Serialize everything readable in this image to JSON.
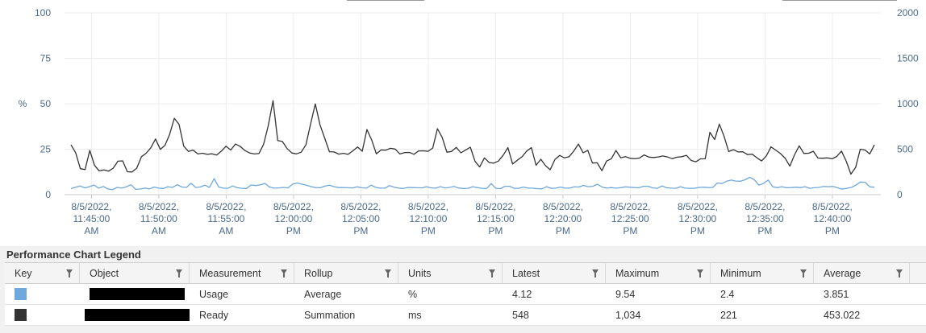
{
  "chart_data": {
    "type": "line",
    "title": "",
    "ylabel": "%",
    "y_left": {
      "ticks": [
        0,
        25,
        50,
        75,
        100
      ],
      "range": [
        0,
        100
      ]
    },
    "y_right": {
      "ticks": [
        0,
        500,
        1000,
        1500,
        2000
      ],
      "range": [
        0,
        2000
      ]
    },
    "x_tick_labels": [
      [
        "8/5/2022,",
        "11:45:00",
        "AM"
      ],
      [
        "8/5/2022,",
        "11:50:00",
        "AM"
      ],
      [
        "8/5/2022,",
        "11:55:00",
        "AM"
      ],
      [
        "8/5/2022,",
        "12:00:00",
        "PM"
      ],
      [
        "8/5/2022,",
        "12:05:00",
        "PM"
      ],
      [
        "8/5/2022,",
        "12:10:00",
        "PM"
      ],
      [
        "8/5/2022,",
        "12:15:00",
        "PM"
      ],
      [
        "8/5/2022,",
        "12:20:00",
        "PM"
      ],
      [
        "8/5/2022,",
        "12:25:00",
        "PM"
      ],
      [
        "8/5/2022,",
        "12:30:00",
        "PM"
      ],
      [
        "8/5/2022,",
        "12:35:00",
        "PM"
      ],
      [
        "8/5/2022,",
        "12:40:00",
        "PM"
      ]
    ],
    "x_start_minute": 43,
    "x_end_minute": 103.6,
    "grid": true,
    "series": [
      {
        "name": "Ready",
        "color": "#333333",
        "axis": "right",
        "values": [
          548,
          461,
          286,
          276,
          487,
          324,
          262,
          272,
          258,
          292,
          368,
          372,
          252,
          250,
          291,
          418,
          456,
          516,
          612,
          498,
          542,
          663,
          841,
          773,
          534,
          476,
          490,
          448,
          456,
          443,
          450,
          436,
          479,
          533,
          491,
          557,
          532,
          486,
          459,
          448,
          452,
          554,
          760,
          1034,
          596,
          585,
          507,
          458,
          449,
          467,
          547,
          779,
          999,
          768,
          623,
          473,
          470,
          446,
          455,
          443,
          482,
          525,
          478,
          717,
          601,
          449,
          492,
          489,
          510,
          502,
          448,
          463,
          465,
          444,
          481,
          482,
          477,
          513,
          726,
          632,
          467,
          475,
          520,
          460,
          492,
          522,
          366,
          304,
          404,
          353,
          347,
          370,
          435,
          518,
          337,
          379,
          417,
          480,
          518,
          323,
          389,
          319,
          274,
          386,
          432,
          405,
          417,
          478,
          557,
          461,
          488,
          348,
          350,
          264,
          370,
          395,
          486,
          406,
          418,
          401,
          395,
          403,
          437,
          413,
          409,
          415,
          426,
          414,
          396,
          412,
          418,
          433,
          376,
          362,
          394,
          395,
          686,
          606,
          776,
          643,
          474,
          495,
          470,
          472,
          441,
          446,
          405,
          371,
          426,
          526,
          490,
          452,
          402,
          313,
          438,
          537,
          453,
          456,
          477,
          403,
          401,
          404,
          395,
          420,
          480,
          368,
          226,
          298,
          500,
          491,
          448,
          548
        ],
        "latest": 548,
        "maximum": 1034,
        "minimum": 221,
        "average": 453.022
      },
      {
        "name": "Usage",
        "color": "#6ea8dc",
        "axis": "left",
        "values": [
          3.3,
          4.1,
          4.8,
          3.7,
          4.4,
          5.3,
          3.6,
          4.5,
          3.1,
          2.8,
          4.0,
          3.6,
          4.3,
          5.5,
          2.9,
          3.1,
          3.6,
          3.2,
          4.2,
          3.6,
          3.4,
          4.4,
          4.0,
          5.5,
          4.2,
          4.0,
          6.3,
          4.0,
          4.2,
          5.2,
          4.0,
          8.8,
          4.2,
          3.6,
          3.5,
          4.8,
          3.8,
          3.5,
          3.4,
          5.3,
          5.0,
          5.4,
          6.2,
          4.2,
          3.6,
          3.7,
          4.0,
          3.7,
          5.8,
          6.4,
          5.8,
          5.2,
          4.4,
          3.9,
          3.8,
          4.7,
          5.2,
          4.4,
          3.9,
          3.9,
          3.8,
          3.7,
          4.3,
          3.8,
          3.6,
          5.2,
          4.0,
          3.6,
          3.6,
          5.0,
          4.1,
          3.6,
          3.4,
          4.0,
          3.9,
          3.8,
          3.7,
          4.4,
          3.7,
          3.6,
          4.4,
          3.7,
          4.0,
          4.5,
          3.6,
          3.4,
          3.5,
          4.4,
          3.9,
          3.5,
          3.3,
          6.1,
          3.5,
          3.3,
          4.6,
          4.6,
          3.5,
          3.5,
          4.2,
          3.6,
          3.6,
          3.3,
          3.2,
          4.4,
          3.5,
          3.6,
          4.2,
          3.6,
          3.6,
          4.3,
          4.2,
          5.1,
          4.4,
          4.6,
          5.7,
          4.2,
          3.6,
          3.9,
          3.6,
          3.8,
          4.3,
          4.1,
          3.9,
          3.8,
          4.6,
          4.6,
          3.7,
          3.5,
          4.8,
          3.8,
          3.6,
          3.5,
          4.4,
          3.6,
          3.5,
          3.5,
          4.0,
          4.1,
          3.9,
          4.0,
          6.4,
          6.1,
          7.4,
          8.0,
          7.5,
          7.4,
          8.2,
          9.54,
          8.2,
          5.2,
          6.2,
          8.0,
          4.3,
          3.9,
          4.4,
          3.8,
          3.9,
          4.1,
          3.9,
          4.4,
          3.5,
          3.8,
          4.0,
          4.5,
          4.4,
          4.5,
          3.8,
          3.0,
          3.5,
          4.0,
          5.2,
          7.0,
          6.8,
          4.3,
          4.12
        ],
        "latest": 4.12,
        "maximum": 9.54,
        "minimum": 2.4,
        "average": 3.851
      }
    ]
  },
  "legend": {
    "title": "Performance Chart Legend",
    "columns": [
      "Key",
      "Object",
      "Measurement",
      "Rollup",
      "Units",
      "Latest",
      "Maximum",
      "Minimum",
      "Average"
    ],
    "rows": [
      {
        "key_color": "#6ea8dc",
        "measurement": "Usage",
        "rollup": "Average",
        "units": "%",
        "latest": "4.12",
        "maximum": "9.54",
        "minimum": "2.4",
        "average": "3.851"
      },
      {
        "key_color": "#333333",
        "measurement": "Ready",
        "rollup": "Summation",
        "units": "ms",
        "latest": "548",
        "maximum": "1,034",
        "minimum": "221",
        "average": "453.022"
      }
    ]
  }
}
